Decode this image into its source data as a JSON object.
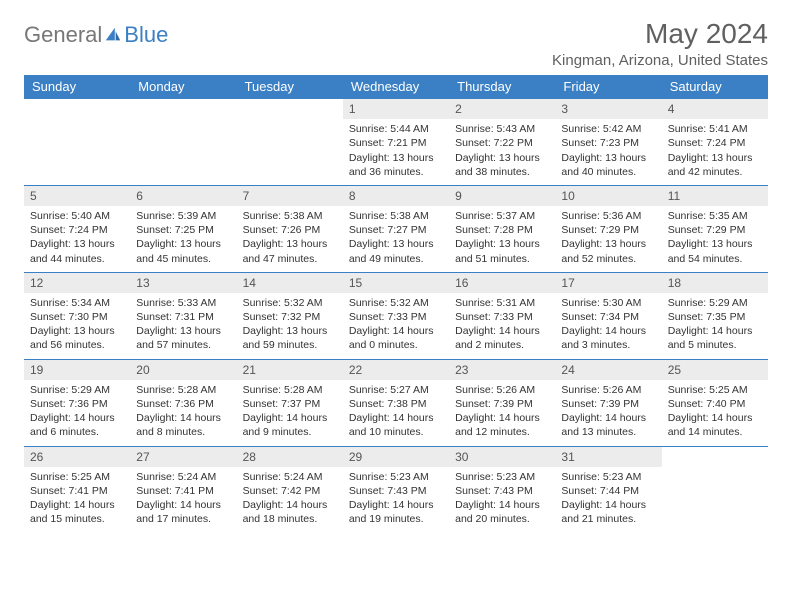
{
  "brand": {
    "part1": "General",
    "part2": "Blue"
  },
  "title": "May 2024",
  "location": "Kingman, Arizona, United States",
  "colors": {
    "header_bg": "#3b7fc4",
    "header_text": "#ffffff",
    "daynum_bg": "#ececec",
    "row_border": "#3b7fc4",
    "title_color": "#606060",
    "body_text": "#333333"
  },
  "day_labels": [
    "Sunday",
    "Monday",
    "Tuesday",
    "Wednesday",
    "Thursday",
    "Friday",
    "Saturday"
  ],
  "weeks": [
    [
      null,
      null,
      null,
      {
        "num": "1",
        "sunrise": "5:44 AM",
        "sunset": "7:21 PM",
        "daylight": "13 hours and 36 minutes."
      },
      {
        "num": "2",
        "sunrise": "5:43 AM",
        "sunset": "7:22 PM",
        "daylight": "13 hours and 38 minutes."
      },
      {
        "num": "3",
        "sunrise": "5:42 AM",
        "sunset": "7:23 PM",
        "daylight": "13 hours and 40 minutes."
      },
      {
        "num": "4",
        "sunrise": "5:41 AM",
        "sunset": "7:24 PM",
        "daylight": "13 hours and 42 minutes."
      }
    ],
    [
      {
        "num": "5",
        "sunrise": "5:40 AM",
        "sunset": "7:24 PM",
        "daylight": "13 hours and 44 minutes."
      },
      {
        "num": "6",
        "sunrise": "5:39 AM",
        "sunset": "7:25 PM",
        "daylight": "13 hours and 45 minutes."
      },
      {
        "num": "7",
        "sunrise": "5:38 AM",
        "sunset": "7:26 PM",
        "daylight": "13 hours and 47 minutes."
      },
      {
        "num": "8",
        "sunrise": "5:38 AM",
        "sunset": "7:27 PM",
        "daylight": "13 hours and 49 minutes."
      },
      {
        "num": "9",
        "sunrise": "5:37 AM",
        "sunset": "7:28 PM",
        "daylight": "13 hours and 51 minutes."
      },
      {
        "num": "10",
        "sunrise": "5:36 AM",
        "sunset": "7:29 PM",
        "daylight": "13 hours and 52 minutes."
      },
      {
        "num": "11",
        "sunrise": "5:35 AM",
        "sunset": "7:29 PM",
        "daylight": "13 hours and 54 minutes."
      }
    ],
    [
      {
        "num": "12",
        "sunrise": "5:34 AM",
        "sunset": "7:30 PM",
        "daylight": "13 hours and 56 minutes."
      },
      {
        "num": "13",
        "sunrise": "5:33 AM",
        "sunset": "7:31 PM",
        "daylight": "13 hours and 57 minutes."
      },
      {
        "num": "14",
        "sunrise": "5:32 AM",
        "sunset": "7:32 PM",
        "daylight": "13 hours and 59 minutes."
      },
      {
        "num": "15",
        "sunrise": "5:32 AM",
        "sunset": "7:33 PM",
        "daylight": "14 hours and 0 minutes."
      },
      {
        "num": "16",
        "sunrise": "5:31 AM",
        "sunset": "7:33 PM",
        "daylight": "14 hours and 2 minutes."
      },
      {
        "num": "17",
        "sunrise": "5:30 AM",
        "sunset": "7:34 PM",
        "daylight": "14 hours and 3 minutes."
      },
      {
        "num": "18",
        "sunrise": "5:29 AM",
        "sunset": "7:35 PM",
        "daylight": "14 hours and 5 minutes."
      }
    ],
    [
      {
        "num": "19",
        "sunrise": "5:29 AM",
        "sunset": "7:36 PM",
        "daylight": "14 hours and 6 minutes."
      },
      {
        "num": "20",
        "sunrise": "5:28 AM",
        "sunset": "7:36 PM",
        "daylight": "14 hours and 8 minutes."
      },
      {
        "num": "21",
        "sunrise": "5:28 AM",
        "sunset": "7:37 PM",
        "daylight": "14 hours and 9 minutes."
      },
      {
        "num": "22",
        "sunrise": "5:27 AM",
        "sunset": "7:38 PM",
        "daylight": "14 hours and 10 minutes."
      },
      {
        "num": "23",
        "sunrise": "5:26 AM",
        "sunset": "7:39 PM",
        "daylight": "14 hours and 12 minutes."
      },
      {
        "num": "24",
        "sunrise": "5:26 AM",
        "sunset": "7:39 PM",
        "daylight": "14 hours and 13 minutes."
      },
      {
        "num": "25",
        "sunrise": "5:25 AM",
        "sunset": "7:40 PM",
        "daylight": "14 hours and 14 minutes."
      }
    ],
    [
      {
        "num": "26",
        "sunrise": "5:25 AM",
        "sunset": "7:41 PM",
        "daylight": "14 hours and 15 minutes."
      },
      {
        "num": "27",
        "sunrise": "5:24 AM",
        "sunset": "7:41 PM",
        "daylight": "14 hours and 17 minutes."
      },
      {
        "num": "28",
        "sunrise": "5:24 AM",
        "sunset": "7:42 PM",
        "daylight": "14 hours and 18 minutes."
      },
      {
        "num": "29",
        "sunrise": "5:23 AM",
        "sunset": "7:43 PM",
        "daylight": "14 hours and 19 minutes."
      },
      {
        "num": "30",
        "sunrise": "5:23 AM",
        "sunset": "7:43 PM",
        "daylight": "14 hours and 20 minutes."
      },
      {
        "num": "31",
        "sunrise": "5:23 AM",
        "sunset": "7:44 PM",
        "daylight": "14 hours and 21 minutes."
      },
      null
    ]
  ],
  "labels": {
    "sunrise": "Sunrise: ",
    "sunset": "Sunset: ",
    "daylight": "Daylight: "
  }
}
